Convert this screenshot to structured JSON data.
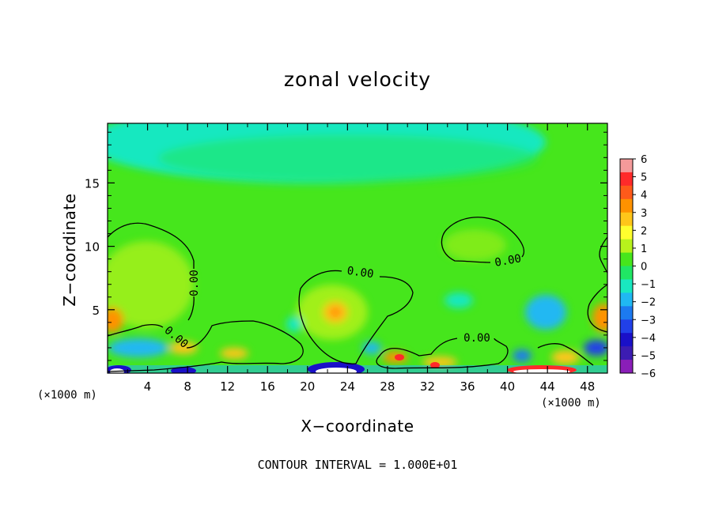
{
  "chart_data": {
    "type": "heatmap",
    "title": "zonal velocity",
    "xlabel": "X−coordinate",
    "ylabel": "Z−coordinate",
    "x_unit": "(×1000 m)",
    "z_unit": "(×1000 m)",
    "x_ticks": [
      4,
      8,
      12,
      16,
      20,
      24,
      28,
      32,
      36,
      40,
      44,
      48
    ],
    "y_ticks": [
      5,
      10,
      15
    ],
    "xlim": [
      0,
      50
    ],
    "ylim": [
      0,
      19.7
    ],
    "colorbar": {
      "ticks": [
        "6",
        "5",
        "4",
        "3",
        "2",
        "1",
        "0",
        "−1",
        "−2",
        "−3",
        "−4",
        "−5",
        "−6"
      ],
      "range": [
        -6,
        6
      ],
      "colors": [
        "#f49a9a",
        "#ff2a2a",
        "#ff5a1a",
        "#ff9200",
        "#ffc61a",
        "#ffff2e",
        "#b8f21c",
        "#46e61c",
        "#20e664",
        "#19e8c0",
        "#20b8f2",
        "#1c7af0",
        "#2140e8",
        "#1a10c8",
        "#3c1cb2",
        "#8a1eb8"
      ]
    },
    "contour_label": "0.00",
    "contour_interval_text": "CONTOUR INTERVAL = 1.000E+01"
  }
}
